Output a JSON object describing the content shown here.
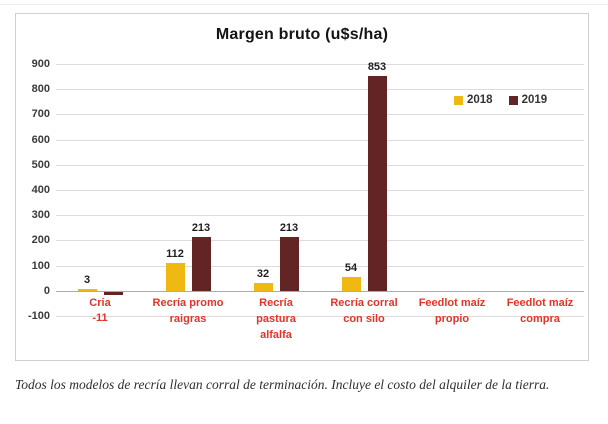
{
  "chart_data": {
    "type": "bar",
    "title": "Margen bruto (u$s/ha)",
    "categories": [
      "Cria",
      "Recría promo\nraigras",
      "Recría\npastura\nalfalfa",
      "Recría corral\ncon silo",
      "Feedlot maíz\npropio",
      "Feedlot maíz\ncompra"
    ],
    "series": [
      {
        "name": "2018",
        "color": "#F0B813",
        "values": [
          3,
          112,
          32,
          54,
          null,
          null
        ]
      },
      {
        "name": "2019",
        "color": "#632523",
        "values": [
          -11,
          213,
          213,
          853,
          null,
          null
        ]
      }
    ],
    "ylim": [
      -100,
      900
    ],
    "y_tick_step": 100,
    "grid": true,
    "legend_position": "upper-right",
    "category_label_color": "#e23427",
    "negative_value_label_color": "#e23427"
  },
  "caption": {
    "text": "Todos los modelos de recría llevan corral de terminación. Incluye el costo del alquiler de la tierra."
  }
}
